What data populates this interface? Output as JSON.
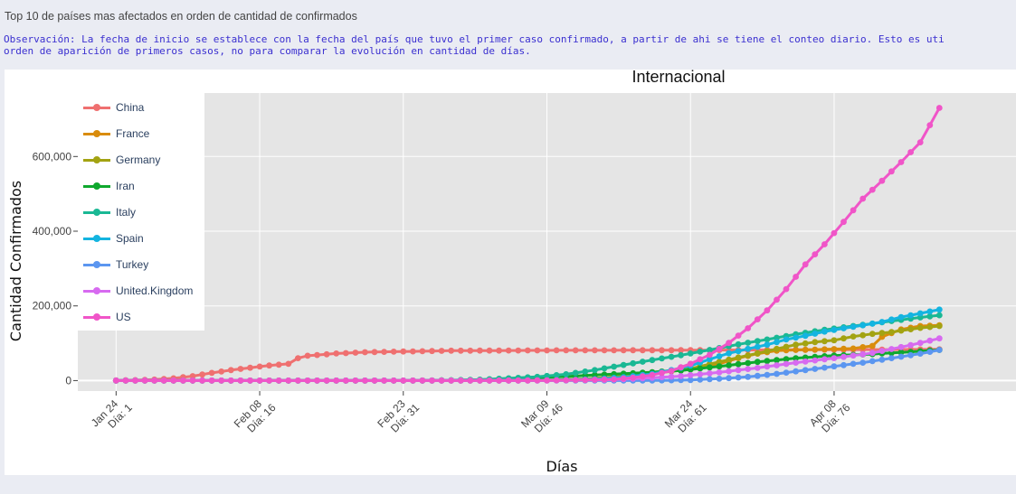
{
  "page": {
    "header": "Top 10 de países mas afectados en orden de cantidad de confirmados",
    "note_line1": "Observación: La fecha de inicio se establece con la fecha del país que tuvo el primer caso confirmado, a partir de ahi se tiene el conteo diario. Esto es uti",
    "note_line2": "orden de aparición de primeros casos, no para comparar la evolución en cantidad de días."
  },
  "chart_data": {
    "type": "line",
    "title": "Internacional",
    "xlabel": "Días",
    "ylabel": "Cantidad Confirmados",
    "xlim": [
      -3,
      95
    ],
    "ylim": [
      -28000,
      770000
    ],
    "grid": true,
    "plot_background": "#e5e5e5",
    "legend_position": "top-left",
    "x_ticks": [
      {
        "day": 1,
        "line1": "Jan 24",
        "line2": "Día: 1"
      },
      {
        "day": 16,
        "line1": "Feb 08",
        "line2": "Día: 16"
      },
      {
        "day": 31,
        "line1": "Feb 23",
        "line2": "Día: 31"
      },
      {
        "day": 46,
        "line1": "Mar 09",
        "line2": "Día: 46"
      },
      {
        "day": 61,
        "line1": "Mar 24",
        "line2": "Día: 61"
      },
      {
        "day": 76,
        "line1": "Apr 08",
        "line2": "Día: 76"
      }
    ],
    "y_ticks": [
      {
        "value": 0,
        "label": "0"
      },
      {
        "value": 200000,
        "label": "200,000"
      },
      {
        "value": 400000,
        "label": "400,000"
      },
      {
        "value": 600000,
        "label": "600,000"
      }
    ],
    "series": [
      {
        "name": "China",
        "color": "#ef7070",
        "points": [
          [
            1,
            600
          ],
          [
            3,
            1300
          ],
          [
            5,
            2800
          ],
          [
            7,
            6000
          ],
          [
            9,
            11800
          ],
          [
            11,
            20500
          ],
          [
            13,
            28000
          ],
          [
            15,
            34500
          ],
          [
            17,
            40500
          ],
          [
            19,
            44700
          ],
          [
            20,
            60000
          ],
          [
            21,
            66500
          ],
          [
            24,
            72500
          ],
          [
            27,
            76000
          ],
          [
            31,
            77800
          ],
          [
            36,
            80000
          ],
          [
            46,
            80900
          ],
          [
            56,
            81300
          ],
          [
            61,
            81500
          ],
          [
            66,
            81800
          ],
          [
            71,
            82300
          ],
          [
            76,
            82800
          ],
          [
            81,
            83000
          ],
          [
            86,
            83500
          ],
          [
            87,
            83700
          ]
        ]
      },
      {
        "name": "France",
        "color": "#d98c0c",
        "points": [
          [
            1,
            0
          ],
          [
            40,
            100
          ],
          [
            46,
            1200
          ],
          [
            50,
            4500
          ],
          [
            53,
            9000
          ],
          [
            56,
            15000
          ],
          [
            59,
            25000
          ],
          [
            61,
            30000
          ],
          [
            64,
            45000
          ],
          [
            66,
            60000
          ],
          [
            68,
            72000
          ],
          [
            70,
            80000
          ],
          [
            72,
            82000
          ],
          [
            74,
            83000
          ],
          [
            78,
            86000
          ],
          [
            80,
            93000
          ],
          [
            81,
            117000
          ],
          [
            83,
            137000
          ],
          [
            85,
            146000
          ],
          [
            87,
            148000
          ]
        ]
      },
      {
        "name": "Germany",
        "color": "#a3a312",
        "points": [
          [
            1,
            0
          ],
          [
            36,
            16
          ],
          [
            46,
            1100
          ],
          [
            50,
            4000
          ],
          [
            54,
            12000
          ],
          [
            57,
            22000
          ],
          [
            61,
            32000
          ],
          [
            64,
            50000
          ],
          [
            66,
            62000
          ],
          [
            68,
            73000
          ],
          [
            70,
            85000
          ],
          [
            72,
            96000
          ],
          [
            74,
            103000
          ],
          [
            76,
            108000
          ],
          [
            78,
            118000
          ],
          [
            80,
            125000
          ],
          [
            82,
            130000
          ],
          [
            85,
            141000
          ],
          [
            87,
            146000
          ]
        ]
      },
      {
        "name": "Iran",
        "color": "#0fa82e",
        "points": [
          [
            1,
            0
          ],
          [
            28,
            0
          ],
          [
            32,
            100
          ],
          [
            36,
            600
          ],
          [
            40,
            2300
          ],
          [
            44,
            6500
          ],
          [
            48,
            11000
          ],
          [
            52,
            16000
          ],
          [
            56,
            21000
          ],
          [
            60,
            27000
          ],
          [
            64,
            38000
          ],
          [
            68,
            50000
          ],
          [
            72,
            60000
          ],
          [
            76,
            67000
          ],
          [
            80,
            71000
          ],
          [
            84,
            77000
          ],
          [
            87,
            82000
          ]
        ]
      },
      {
        "name": "Italy",
        "color": "#1ab894",
        "points": [
          [
            1,
            0
          ],
          [
            30,
            3
          ],
          [
            33,
            150
          ],
          [
            36,
            900
          ],
          [
            39,
            2500
          ],
          [
            42,
            6000
          ],
          [
            45,
            10000
          ],
          [
            48,
            17000
          ],
          [
            51,
            28000
          ],
          [
            54,
            42000
          ],
          [
            57,
            55000
          ],
          [
            60,
            68000
          ],
          [
            63,
            82000
          ],
          [
            66,
            97000
          ],
          [
            69,
            110000
          ],
          [
            72,
            124000
          ],
          [
            75,
            136000
          ],
          [
            78,
            146000
          ],
          [
            81,
            156000
          ],
          [
            84,
            166000
          ],
          [
            87,
            175000
          ]
        ]
      },
      {
        "name": "Spain",
        "color": "#14b4e0",
        "points": [
          [
            1,
            0
          ],
          [
            40,
            100
          ],
          [
            44,
            500
          ],
          [
            48,
            1700
          ],
          [
            51,
            4000
          ],
          [
            54,
            9000
          ],
          [
            57,
            18000
          ],
          [
            59,
            28000
          ],
          [
            61,
            40000
          ],
          [
            63,
            57000
          ],
          [
            65,
            73000
          ],
          [
            67,
            85000
          ],
          [
            69,
            96000
          ],
          [
            71,
            110000
          ],
          [
            73,
            120000
          ],
          [
            75,
            131000
          ],
          [
            77,
            140000
          ],
          [
            79,
            148000
          ],
          [
            81,
            157000
          ],
          [
            83,
            170000
          ],
          [
            85,
            180000
          ],
          [
            87,
            190000
          ]
        ]
      },
      {
        "name": "Turkey",
        "color": "#5b96f0",
        "points": [
          [
            1,
            0
          ],
          [
            55,
            0
          ],
          [
            58,
            500
          ],
          [
            61,
            1500
          ],
          [
            64,
            5000
          ],
          [
            67,
            10000
          ],
          [
            70,
            18000
          ],
          [
            73,
            28000
          ],
          [
            76,
            38000
          ],
          [
            79,
            48000
          ],
          [
            82,
            60000
          ],
          [
            85,
            72000
          ],
          [
            87,
            82000
          ]
        ]
      },
      {
        "name": "United.Kingdom",
        "color": "#d76af0",
        "points": [
          [
            1,
            0
          ],
          [
            40,
            15
          ],
          [
            46,
            300
          ],
          [
            52,
            2000
          ],
          [
            56,
            6000
          ],
          [
            60,
            12000
          ],
          [
            64,
            22000
          ],
          [
            68,
            34000
          ],
          [
            72,
            48000
          ],
          [
            76,
            60000
          ],
          [
            80,
            74000
          ],
          [
            84,
            95000
          ],
          [
            87,
            113000
          ]
        ]
      },
      {
        "name": "US",
        "color": "#f055c8",
        "points": [
          [
            1,
            1
          ],
          [
            35,
            20
          ],
          [
            46,
            500
          ],
          [
            50,
            1500
          ],
          [
            53,
            3500
          ],
          [
            55,
            8000
          ],
          [
            57,
            15000
          ],
          [
            59,
            26000
          ],
          [
            61,
            45000
          ],
          [
            63,
            69000
          ],
          [
            65,
            101000
          ],
          [
            67,
            140000
          ],
          [
            69,
            188000
          ],
          [
            71,
            245000
          ],
          [
            73,
            311000
          ],
          [
            75,
            365000
          ],
          [
            77,
            425000
          ],
          [
            79,
            487000
          ],
          [
            81,
            535000
          ],
          [
            83,
            585000
          ],
          [
            85,
            638000
          ],
          [
            87,
            730000
          ]
        ]
      }
    ]
  }
}
